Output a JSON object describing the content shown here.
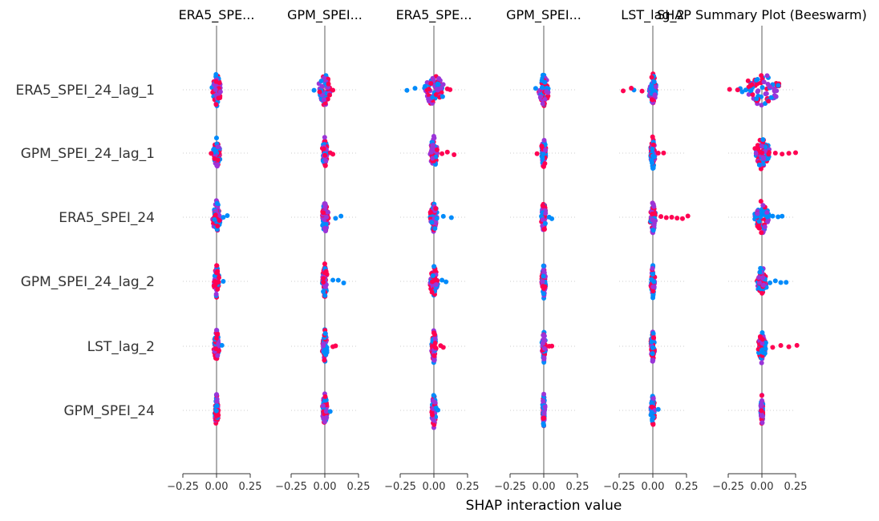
{
  "figure": {
    "title": "SHAP Summary Plot (Beeswarm)",
    "xlabel": "SHAP interaction value"
  },
  "chart_data": {
    "type": "scatter",
    "subtype": "beeswarm",
    "title": "SHAP Summary Plot (Beeswarm)",
    "xlabel": "SHAP interaction value",
    "features": [
      "ERA5_SPEI_24_lag_1",
      "GPM_SPEI_24_lag_1",
      "ERA5_SPEI_24",
      "GPM_SPEI_24_lag_2",
      "LST_lag_2",
      "GPM_SPEI_24"
    ],
    "panel_titles": [
      "ERA5_SPE...",
      "GPM_SPEI...",
      "ERA5_SPE...",
      "GPM_SPEI...",
      "LST_lag_2",
      ""
    ],
    "xlim": [
      -0.25,
      0.25
    ],
    "x_ticks": [
      -0.25,
      0.0,
      0.25
    ],
    "x_tick_labels": [
      "−0.25",
      "0.00",
      "0.25"
    ],
    "colors": {
      "low": "#008bfb",
      "mid": "#9b35d8",
      "high": "#ff0052",
      "zero_line": "#999999",
      "row_guide": "#cccccc"
    },
    "panels": [
      {
        "rows": [
          {
            "core": 0.035,
            "blue_tail": [],
            "red_tail": []
          },
          {
            "core": 0.03,
            "blue_tail": [],
            "red_tail": [
              -0.04
            ]
          },
          {
            "core": 0.03,
            "blue_tail": [
              0.05,
              0.08
            ],
            "red_tail": []
          },
          {
            "core": 0.02,
            "blue_tail": [
              0.05
            ],
            "red_tail": []
          },
          {
            "core": 0.02,
            "blue_tail": [
              0.04
            ],
            "red_tail": []
          },
          {
            "core": 0.015,
            "blue_tail": [],
            "red_tail": []
          }
        ]
      },
      {
        "rows": [
          {
            "core": 0.05,
            "blue_tail": [
              -0.08
            ],
            "red_tail": [
              0.06
            ]
          },
          {
            "core": 0.02,
            "blue_tail": [],
            "red_tail": [
              0.04,
              0.06
            ]
          },
          {
            "core": 0.03,
            "blue_tail": [
              0.08,
              0.12
            ],
            "red_tail": []
          },
          {
            "core": 0.02,
            "blue_tail": [
              0.06,
              0.1,
              0.14
            ],
            "red_tail": []
          },
          {
            "core": 0.02,
            "blue_tail": [],
            "red_tail": [
              0.06,
              0.08
            ]
          },
          {
            "core": 0.02,
            "blue_tail": [
              0.04
            ],
            "red_tail": []
          }
        ]
      },
      {
        "rows": [
          {
            "core": 0.08,
            "blue_tail": [
              -0.14,
              -0.2
            ],
            "red_tail": [
              0.1,
              0.12
            ]
          },
          {
            "core": 0.03,
            "blue_tail": [],
            "red_tail": [
              0.06,
              0.1,
              0.15
            ]
          },
          {
            "core": 0.03,
            "blue_tail": [
              0.07,
              0.13
            ],
            "red_tail": []
          },
          {
            "core": 0.03,
            "blue_tail": [
              0.06,
              0.09
            ],
            "red_tail": []
          },
          {
            "core": 0.02,
            "blue_tail": [],
            "red_tail": [
              0.05,
              0.07
            ]
          },
          {
            "core": 0.02,
            "blue_tail": [
              0.03
            ],
            "red_tail": []
          }
        ]
      },
      {
        "rows": [
          {
            "core": 0.04,
            "blue_tail": [
              -0.06
            ],
            "red_tail": []
          },
          {
            "core": 0.02,
            "blue_tail": [],
            "red_tail": [
              -0.05
            ]
          },
          {
            "core": 0.02,
            "blue_tail": [
              0.04,
              0.06
            ],
            "red_tail": []
          },
          {
            "core": 0.015,
            "blue_tail": [],
            "red_tail": []
          },
          {
            "core": 0.015,
            "blue_tail": [],
            "red_tail": [
              0.04,
              0.06
            ]
          },
          {
            "core": 0.01,
            "blue_tail": [],
            "red_tail": []
          }
        ]
      },
      {
        "rows": [
          {
            "core": 0.03,
            "blue_tail": [
              -0.14
            ],
            "red_tail": [
              -0.08,
              -0.16,
              -0.22
            ]
          },
          {
            "core": 0.02,
            "blue_tail": [],
            "red_tail": [
              0.04,
              0.08
            ]
          },
          {
            "core": 0.02,
            "blue_tail": [],
            "red_tail": [
              0.06,
              0.1,
              0.14,
              0.18,
              0.22,
              0.26
            ]
          },
          {
            "core": 0.015,
            "blue_tail": [],
            "red_tail": []
          },
          {
            "core": 0.015,
            "blue_tail": [],
            "red_tail": []
          },
          {
            "core": 0.015,
            "blue_tail": [
              0.04
            ],
            "red_tail": []
          }
        ]
      },
      {
        "rows": [
          {
            "core": 0.17,
            "blue_tail": [
              -0.08,
              -0.12
            ],
            "red_tail": [
              -0.18,
              -0.24
            ]
          },
          {
            "core": 0.06,
            "blue_tail": [],
            "red_tail": [
              0.0,
              0.05,
              0.1,
              0.15,
              0.2,
              0.25
            ]
          },
          {
            "core": 0.06,
            "blue_tail": [
              0.04,
              0.08,
              0.12,
              0.15
            ],
            "red_tail": []
          },
          {
            "core": 0.04,
            "blue_tail": [
              0.06,
              0.1,
              0.14,
              0.18
            ],
            "red_tail": []
          },
          {
            "core": 0.03,
            "blue_tail": [],
            "red_tail": [
              0.08,
              0.14,
              0.2,
              0.26
            ]
          },
          {
            "core": 0.01,
            "blue_tail": [],
            "red_tail": []
          }
        ]
      }
    ]
  }
}
